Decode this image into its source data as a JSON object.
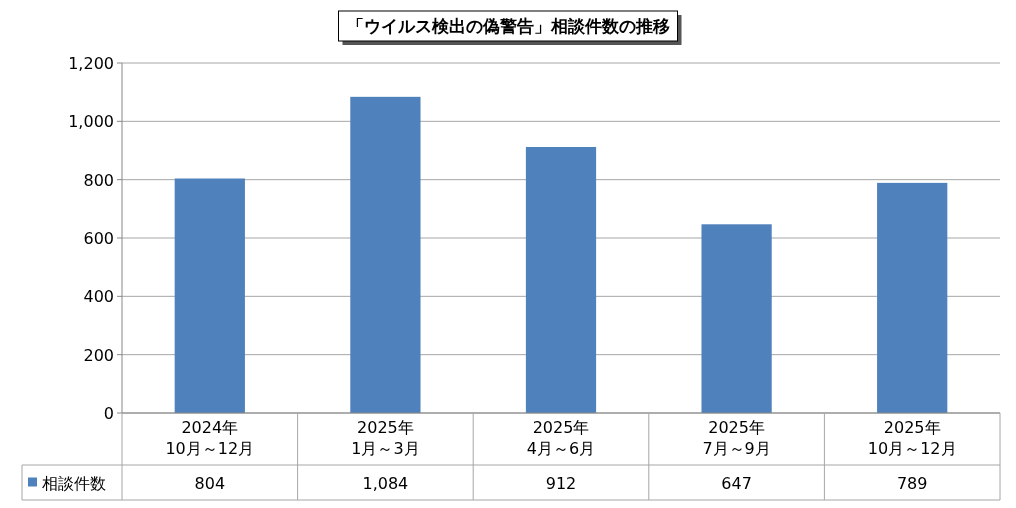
{
  "chart_data": {
    "type": "bar",
    "title": "「ウイルス検出の偽警告」相談件数の推移",
    "categories": [
      "2024年\n10月～12月",
      "2025年\n1月～3月",
      "2025年\n4月～6月",
      "2025年\n7月～9月",
      "2025年\n10月～12月"
    ],
    "series": [
      {
        "name": "相談件数",
        "color": "#4f81bd",
        "values": [
          804,
          1084,
          912,
          647,
          789
        ],
        "value_labels": [
          "804",
          "1,084",
          "912",
          "647",
          "789"
        ]
      }
    ],
    "ylim": [
      0,
      1200
    ],
    "yticks": [
      0,
      200,
      400,
      600,
      800,
      {
        "value": 1000,
        "label": "1,000"
      },
      {
        "value": 1200,
        "label": "1,200"
      }
    ],
    "grid": "y",
    "legend": "bottom left"
  }
}
